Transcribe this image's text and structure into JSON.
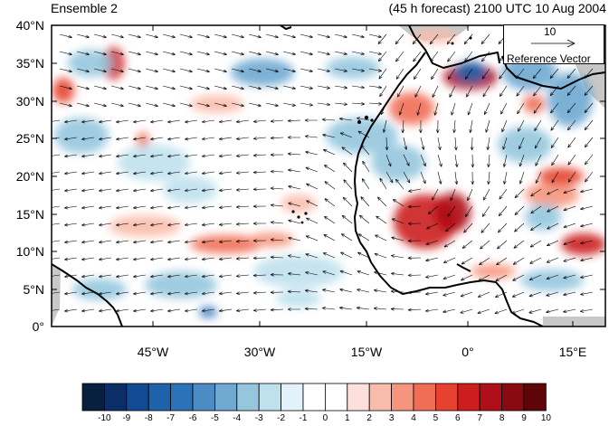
{
  "title_left": "Ensemble 2",
  "title_right": "(45 h forecast) 2100 UTC 10 Aug 2004",
  "map": {
    "lon_range": [
      -58,
      20
    ],
    "lat_range": [
      0,
      40
    ],
    "y_ticks": [
      "0°",
      "5°N",
      "10°N",
      "15°N",
      "20°N",
      "25°N",
      "30°N",
      "35°N",
      "40°N"
    ],
    "x_ticks": [
      "45°W",
      "30°W",
      "15°W",
      "0°",
      "15°E"
    ],
    "land_fill": "#c8c8c8",
    "coastline_color": "#000000"
  },
  "reference_vector": {
    "magnitude": "10",
    "label": "Reference Vector"
  },
  "colorbar": {
    "labels": [
      "-10",
      "-9",
      "-8",
      "-7",
      "-6",
      "-5",
      "-4",
      "-3",
      "-2",
      "-1",
      "0",
      "1",
      "2",
      "3",
      "4",
      "5",
      "6",
      "7",
      "8",
      "9",
      "10"
    ],
    "colors": [
      "#08203d",
      "#0b2e66",
      "#134a94",
      "#1d62ab",
      "#2c72b8",
      "#4b8cc4",
      "#6fa8d1",
      "#95c6de",
      "#bfe1ee",
      "#e2f2fa",
      "#ffffff",
      "#ffffff",
      "#fde0dc",
      "#f9bcac",
      "#f6957d",
      "#f06e55",
      "#e5432f",
      "#cc1f1d",
      "#b00f19",
      "#8a0a12",
      "#5e0508"
    ]
  }
}
